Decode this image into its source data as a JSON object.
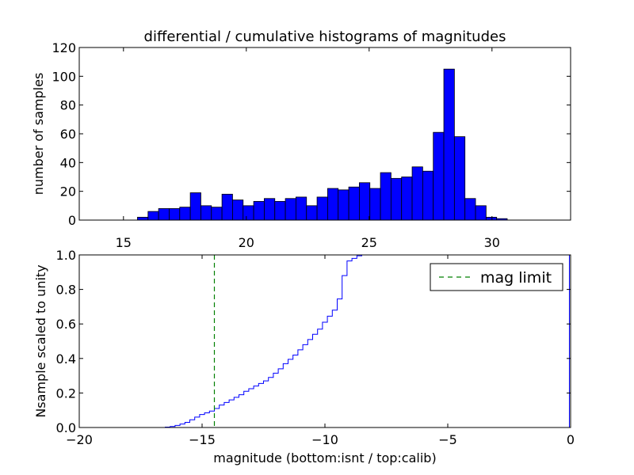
{
  "chart_data": [
    {
      "type": "bar",
      "title": "differential / cumulative histograms of magnitudes",
      "xlabel": "",
      "ylabel": "number of samples",
      "xlim": [
        13.2,
        33.2
      ],
      "ylim": [
        0,
        120
      ],
      "xticks": [
        15,
        20,
        25,
        30
      ],
      "yticks": [
        0,
        20,
        40,
        60,
        80,
        100,
        120
      ],
      "x_axis_position": "top",
      "bin_width": 0.43,
      "bins_start": [
        15.57,
        16.0,
        16.43,
        16.86,
        17.29,
        17.72,
        18.15,
        18.58,
        19.01,
        19.44,
        19.87,
        20.3,
        20.73,
        21.16,
        21.59,
        22.02,
        22.45,
        22.88,
        23.31,
        23.74,
        24.17,
        24.6,
        25.03,
        25.46,
        25.89,
        26.32,
        26.75,
        27.18,
        27.61,
        28.04,
        28.47,
        28.9,
        29.33,
        29.76,
        30.19
      ],
      "values": [
        2,
        6,
        8,
        8,
        9,
        19,
        10,
        9,
        18,
        14,
        10,
        13,
        15,
        13,
        15,
        16,
        10,
        16,
        22,
        21,
        23,
        26,
        22,
        33,
        29,
        30,
        37,
        34,
        61,
        105,
        58,
        15,
        10,
        2,
        1
      ],
      "bar_color": "#0000ff"
    },
    {
      "type": "line",
      "xlabel": "magnitude (bottom:isnt / top:calib)",
      "ylabel": "Nsample scaled to unity",
      "xlim": [
        -20,
        0
      ],
      "ylim": [
        0,
        1.0
      ],
      "xticks": [
        -20,
        -15,
        -10,
        -5,
        0
      ],
      "xtick_labels": [
        "−20",
        "−15",
        "−10",
        "−5",
        "0"
      ],
      "yticks": [
        0.0,
        0.2,
        0.4,
        0.6,
        0.8,
        1.0
      ],
      "ytick_labels": [
        "0.0",
        "0.2",
        "0.4",
        "0.6",
        "0.8",
        "1.0"
      ],
      "series": [
        {
          "name": "cumulative",
          "color": "#0000ff",
          "style": "step",
          "x": [
            -20.0,
            -16.5,
            -16.3,
            -16.1,
            -15.9,
            -15.7,
            -15.5,
            -15.3,
            -15.1,
            -14.9,
            -14.7,
            -14.5,
            -14.3,
            -14.1,
            -13.9,
            -13.7,
            -13.5,
            -13.3,
            -13.1,
            -12.9,
            -12.7,
            -12.5,
            -12.3,
            -12.1,
            -11.9,
            -11.7,
            -11.5,
            -11.3,
            -11.1,
            -10.9,
            -10.7,
            -10.5,
            -10.3,
            -10.1,
            -9.9,
            -9.7,
            -9.5,
            -9.3,
            -9.1,
            -8.9,
            -8.7,
            -8.5,
            -8.3,
            -8.1,
            -0.05
          ],
          "y": [
            0.0,
            0.002,
            0.006,
            0.012,
            0.02,
            0.03,
            0.045,
            0.06,
            0.075,
            0.085,
            0.095,
            0.11,
            0.13,
            0.145,
            0.16,
            0.175,
            0.19,
            0.21,
            0.225,
            0.24,
            0.255,
            0.27,
            0.29,
            0.315,
            0.34,
            0.37,
            0.395,
            0.42,
            0.45,
            0.48,
            0.51,
            0.54,
            0.57,
            0.61,
            0.645,
            0.68,
            0.745,
            0.88,
            0.965,
            0.98,
            0.995,
            1.0,
            1.0,
            1.0,
            1.0
          ]
        },
        {
          "name": "mag limit",
          "color": "#008000",
          "style": "dashed-vertical",
          "x_value": -14.5
        }
      ],
      "legend": {
        "position": "top-right",
        "entries": [
          {
            "label": "mag limit",
            "color": "#008000",
            "style": "dashed"
          }
        ]
      }
    }
  ]
}
